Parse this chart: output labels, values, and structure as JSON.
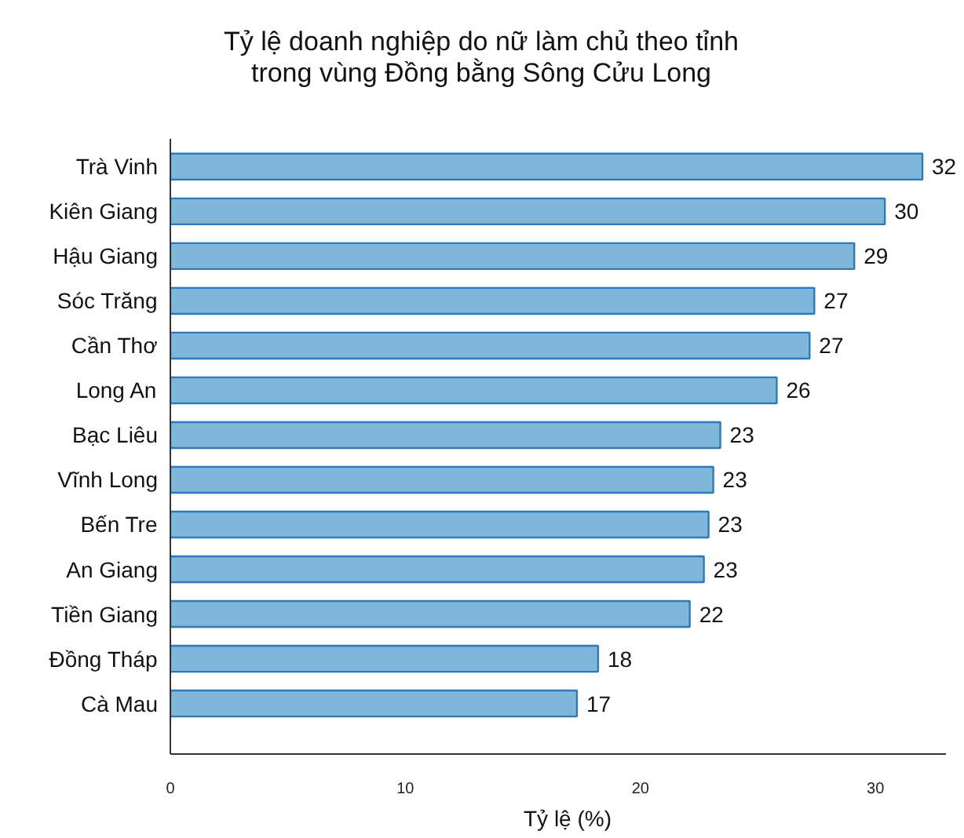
{
  "chart_data": {
    "type": "bar",
    "orientation": "horizontal",
    "title": "Tỷ lệ doanh nghiệp do nữ làm chủ theo tỉnh trong vùng Đồng bằng Sông Cửu Long",
    "xlabel": "Tỷ lệ (%)",
    "categories": [
      "Trà Vinh",
      "Kiên Giang",
      "Hậu Giang",
      "Sóc Trăng",
      "Cần Thơ",
      "Long An",
      "Bạc Liêu",
      "Vĩnh Long",
      "Bến Tre",
      "An Giang",
      "Tiền Giang",
      "Đồng Tháp",
      "Cà Mau"
    ],
    "values": [
      32.0,
      30.4,
      29.1,
      27.4,
      27.2,
      25.8,
      23.4,
      23.1,
      22.9,
      22.7,
      22.1,
      18.2,
      17.3
    ],
    "value_labels": [
      "32",
      "30",
      "29",
      "27",
      "27",
      "26",
      "23",
      "23",
      "23",
      "23",
      "22",
      "18",
      "17"
    ],
    "color": "#80b6d9",
    "xlim": [
      0,
      33
    ],
    "xticks": [
      0,
      10,
      20,
      30
    ]
  }
}
